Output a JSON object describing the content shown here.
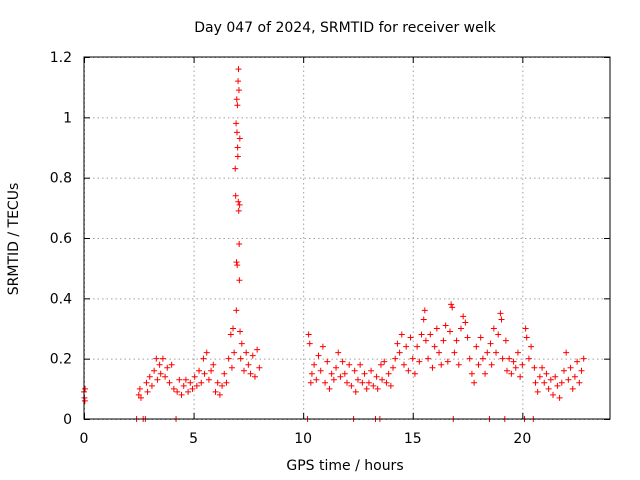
{
  "chart_data": {
    "type": "scatter",
    "title": "Day 047 of 2024, SRMTID for receiver welk",
    "xlabel": "GPS time / hours",
    "ylabel": "SRMTID / TECUs",
    "xlim": [
      0,
      24
    ],
    "ylim": [
      0,
      1.2
    ],
    "grid": true,
    "marker": "plus",
    "x_ticks": [
      0,
      5,
      10,
      15,
      20
    ],
    "y_ticks": [
      0,
      0.2,
      0.4,
      0.6,
      0.8,
      1,
      1.2
    ],
    "x_tick_labels": [
      "0",
      "5",
      "10",
      "15",
      "20"
    ],
    "y_tick_labels": [
      "0",
      "0.2",
      "0.4",
      "0.6",
      "0.8",
      "1",
      "1.2"
    ],
    "series": [
      {
        "name": "SRMTID",
        "color": "#ff0000",
        "points": [
          [
            0.0,
            0.09
          ],
          [
            0.02,
            0.07
          ],
          [
            0.04,
            0.06
          ],
          [
            0.05,
            0.1
          ],
          [
            2.4,
            0.0
          ],
          [
            2.5,
            0.08
          ],
          [
            2.55,
            0.1
          ],
          [
            2.6,
            0.07
          ],
          [
            2.7,
            0.0
          ],
          [
            2.8,
            0.0
          ],
          [
            2.85,
            0.12
          ],
          [
            2.9,
            0.09
          ],
          [
            3.0,
            0.14
          ],
          [
            3.1,
            0.11
          ],
          [
            3.2,
            0.16
          ],
          [
            3.3,
            0.2
          ],
          [
            3.35,
            0.13
          ],
          [
            3.45,
            0.18
          ],
          [
            3.5,
            0.15
          ],
          [
            3.6,
            0.2
          ],
          [
            3.7,
            0.14
          ],
          [
            3.8,
            0.17
          ],
          [
            3.9,
            0.12
          ],
          [
            4.0,
            0.18
          ],
          [
            4.1,
            0.1
          ],
          [
            4.2,
            0.0
          ],
          [
            4.25,
            0.09
          ],
          [
            4.35,
            0.13
          ],
          [
            4.45,
            0.08
          ],
          [
            4.55,
            0.11
          ],
          [
            4.65,
            0.13
          ],
          [
            4.75,
            0.09
          ],
          [
            4.85,
            0.12
          ],
          [
            4.95,
            0.1
          ],
          [
            5.05,
            0.14
          ],
          [
            5.15,
            0.11
          ],
          [
            5.25,
            0.16
          ],
          [
            5.35,
            0.12
          ],
          [
            5.45,
            0.2
          ],
          [
            5.5,
            0.15
          ],
          [
            5.6,
            0.22
          ],
          [
            5.7,
            0.13
          ],
          [
            5.8,
            0.16
          ],
          [
            5.9,
            0.18
          ],
          [
            6.0,
            0.09
          ],
          [
            6.1,
            0.12
          ],
          [
            6.2,
            0.08
          ],
          [
            6.3,
            0.11
          ],
          [
            6.4,
            0.15
          ],
          [
            6.5,
            0.12
          ],
          [
            6.6,
            0.2
          ],
          [
            6.7,
            0.28
          ],
          [
            6.75,
            0.17
          ],
          [
            6.8,
            0.3
          ],
          [
            6.85,
            0.22
          ],
          [
            6.9,
            0.83
          ],
          [
            6.92,
            0.74
          ],
          [
            6.94,
            0.98
          ],
          [
            6.95,
            0.36
          ],
          [
            6.96,
            0.52
          ],
          [
            6.97,
            1.06
          ],
          [
            6.98,
            0.95
          ],
          [
            6.99,
            0.51
          ],
          [
            7.0,
            1.04
          ],
          [
            7.01,
            0.9
          ],
          [
            7.02,
            0.87
          ],
          [
            7.03,
            1.12
          ],
          [
            7.04,
            0.72
          ],
          [
            7.05,
            1.16
          ],
          [
            7.06,
            0.69
          ],
          [
            7.07,
            1.09
          ],
          [
            7.08,
            0.58
          ],
          [
            7.09,
            0.46
          ],
          [
            7.1,
            0.71
          ],
          [
            7.11,
            0.93
          ],
          [
            7.12,
            0.29
          ],
          [
            7.15,
            0.2
          ],
          [
            7.2,
            0.25
          ],
          [
            7.3,
            0.16
          ],
          [
            7.4,
            0.22
          ],
          [
            7.5,
            0.18
          ],
          [
            7.6,
            0.15
          ],
          [
            7.7,
            0.21
          ],
          [
            7.8,
            0.14
          ],
          [
            7.9,
            0.23
          ],
          [
            8.0,
            0.17
          ],
          [
            10.2,
            0.0
          ],
          [
            10.25,
            0.28
          ],
          [
            10.3,
            0.25
          ],
          [
            10.35,
            0.12
          ],
          [
            10.4,
            0.15
          ],
          [
            10.5,
            0.18
          ],
          [
            10.6,
            0.13
          ],
          [
            10.7,
            0.21
          ],
          [
            10.8,
            0.16
          ],
          [
            10.9,
            0.24
          ],
          [
            11.0,
            0.12
          ],
          [
            11.1,
            0.19
          ],
          [
            11.2,
            0.1
          ],
          [
            11.3,
            0.15
          ],
          [
            11.4,
            0.13
          ],
          [
            11.5,
            0.17
          ],
          [
            11.6,
            0.22
          ],
          [
            11.7,
            0.14
          ],
          [
            11.8,
            0.19
          ],
          [
            11.9,
            0.15
          ],
          [
            12.0,
            0.12
          ],
          [
            12.1,
            0.18
          ],
          [
            12.2,
            0.11
          ],
          [
            12.3,
            0.0
          ],
          [
            12.35,
            0.16
          ],
          [
            12.4,
            0.09
          ],
          [
            12.5,
            0.13
          ],
          [
            12.6,
            0.18
          ],
          [
            12.7,
            0.12
          ],
          [
            12.8,
            0.15
          ],
          [
            12.9,
            0.1
          ],
          [
            13.0,
            0.12
          ],
          [
            13.1,
            0.16
          ],
          [
            13.2,
            0.11
          ],
          [
            13.3,
            0.0
          ],
          [
            13.35,
            0.14
          ],
          [
            13.4,
            0.1
          ],
          [
            13.5,
            0.0
          ],
          [
            13.55,
            0.18
          ],
          [
            13.6,
            0.13
          ],
          [
            13.7,
            0.19
          ],
          [
            13.8,
            0.12
          ],
          [
            13.9,
            0.15
          ],
          [
            14.0,
            0.11
          ],
          [
            14.1,
            0.17
          ],
          [
            14.2,
            0.2
          ],
          [
            14.3,
            0.25
          ],
          [
            14.4,
            0.22
          ],
          [
            14.5,
            0.28
          ],
          [
            14.6,
            0.18
          ],
          [
            14.7,
            0.24
          ],
          [
            14.8,
            0.16
          ],
          [
            14.9,
            0.27
          ],
          [
            15.0,
            0.2
          ],
          [
            15.1,
            0.15
          ],
          [
            15.2,
            0.24
          ],
          [
            15.3,
            0.19
          ],
          [
            15.4,
            0.28
          ],
          [
            15.5,
            0.33
          ],
          [
            15.55,
            0.36
          ],
          [
            15.6,
            0.26
          ],
          [
            15.7,
            0.2
          ],
          [
            15.8,
            0.28
          ],
          [
            15.9,
            0.17
          ],
          [
            16.0,
            0.24
          ],
          [
            16.1,
            0.3
          ],
          [
            16.2,
            0.22
          ],
          [
            16.3,
            0.18
          ],
          [
            16.4,
            0.26
          ],
          [
            16.5,
            0.31
          ],
          [
            16.6,
            0.19
          ],
          [
            16.7,
            0.29
          ],
          [
            16.75,
            0.38
          ],
          [
            16.8,
            0.37
          ],
          [
            16.85,
            0.0
          ],
          [
            16.9,
            0.22
          ],
          [
            17.0,
            0.26
          ],
          [
            17.1,
            0.18
          ],
          [
            17.2,
            0.3
          ],
          [
            17.3,
            0.34
          ],
          [
            17.4,
            0.32
          ],
          [
            17.5,
            0.27
          ],
          [
            17.6,
            0.2
          ],
          [
            17.7,
            0.15
          ],
          [
            17.8,
            0.12
          ],
          [
            17.9,
            0.24
          ],
          [
            18.0,
            0.18
          ],
          [
            18.1,
            0.27
          ],
          [
            18.2,
            0.2
          ],
          [
            18.3,
            0.15
          ],
          [
            18.4,
            0.22
          ],
          [
            18.5,
            0.0
          ],
          [
            18.55,
            0.25
          ],
          [
            18.6,
            0.18
          ],
          [
            18.7,
            0.3
          ],
          [
            18.8,
            0.22
          ],
          [
            18.9,
            0.28
          ],
          [
            19.0,
            0.35
          ],
          [
            19.05,
            0.33
          ],
          [
            19.1,
            0.2
          ],
          [
            19.2,
            0.0
          ],
          [
            19.25,
            0.26
          ],
          [
            19.3,
            0.16
          ],
          [
            19.4,
            0.2
          ],
          [
            19.5,
            0.15
          ],
          [
            19.6,
            0.19
          ],
          [
            19.7,
            0.17
          ],
          [
            19.8,
            0.22
          ],
          [
            19.9,
            0.14
          ],
          [
            20.0,
            0.18
          ],
          [
            20.1,
            0.0
          ],
          [
            20.15,
            0.3
          ],
          [
            20.2,
            0.27
          ],
          [
            20.3,
            0.2
          ],
          [
            20.4,
            0.24
          ],
          [
            20.5,
            0.0
          ],
          [
            20.55,
            0.17
          ],
          [
            20.6,
            0.12
          ],
          [
            20.7,
            0.09
          ],
          [
            20.8,
            0.14
          ],
          [
            20.9,
            0.17
          ],
          [
            21.0,
            0.12
          ],
          [
            21.1,
            0.15
          ],
          [
            21.2,
            0.1
          ],
          [
            21.3,
            0.13
          ],
          [
            21.4,
            0.08
          ],
          [
            21.5,
            0.14
          ],
          [
            21.6,
            0.11
          ],
          [
            21.7,
            0.07
          ],
          [
            21.8,
            0.12
          ],
          [
            21.9,
            0.16
          ],
          [
            22.0,
            0.22
          ],
          [
            22.1,
            0.13
          ],
          [
            22.2,
            0.17
          ],
          [
            22.3,
            0.1
          ],
          [
            22.4,
            0.14
          ],
          [
            22.5,
            0.19
          ],
          [
            22.6,
            0.12
          ],
          [
            22.7,
            0.16
          ],
          [
            22.8,
            0.2
          ]
        ]
      }
    ]
  }
}
